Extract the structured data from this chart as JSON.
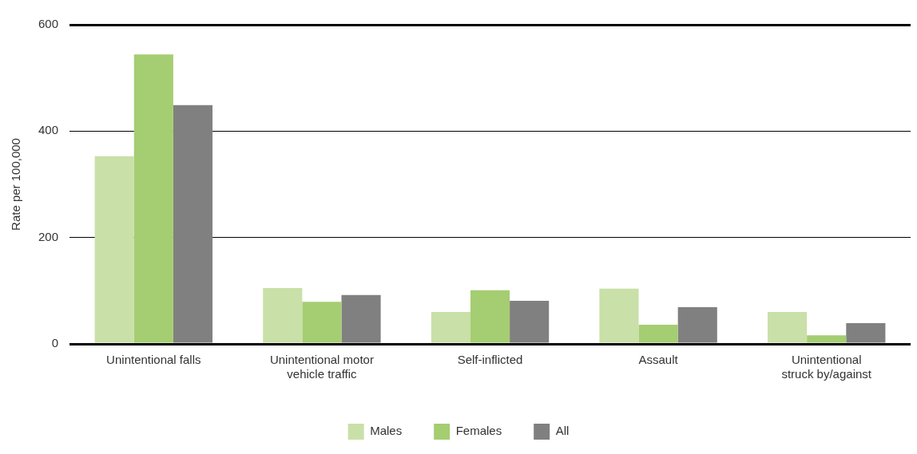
{
  "chart_data": {
    "type": "bar",
    "ylabel": "Rate per 100,000",
    "categories": [
      "Unintentional falls",
      "Unintentional motor vehicle traffic",
      "Self-inflicted",
      "Assault",
      "Unintentional struck by/against"
    ],
    "series": [
      {
        "name": "Males",
        "color": "#c9e0a8",
        "values": [
          353,
          105,
          60,
          104,
          60
        ]
      },
      {
        "name": "Females",
        "color": "#a5cd72",
        "values": [
          544,
          79,
          101,
          36,
          16
        ]
      },
      {
        "name": "All",
        "color": "#808080",
        "values": [
          449,
          92,
          81,
          69,
          39
        ]
      }
    ],
    "ylim": [
      0,
      600
    ],
    "yticks": [
      0,
      200,
      400,
      600
    ],
    "grid": "y",
    "legend": "bottom"
  }
}
